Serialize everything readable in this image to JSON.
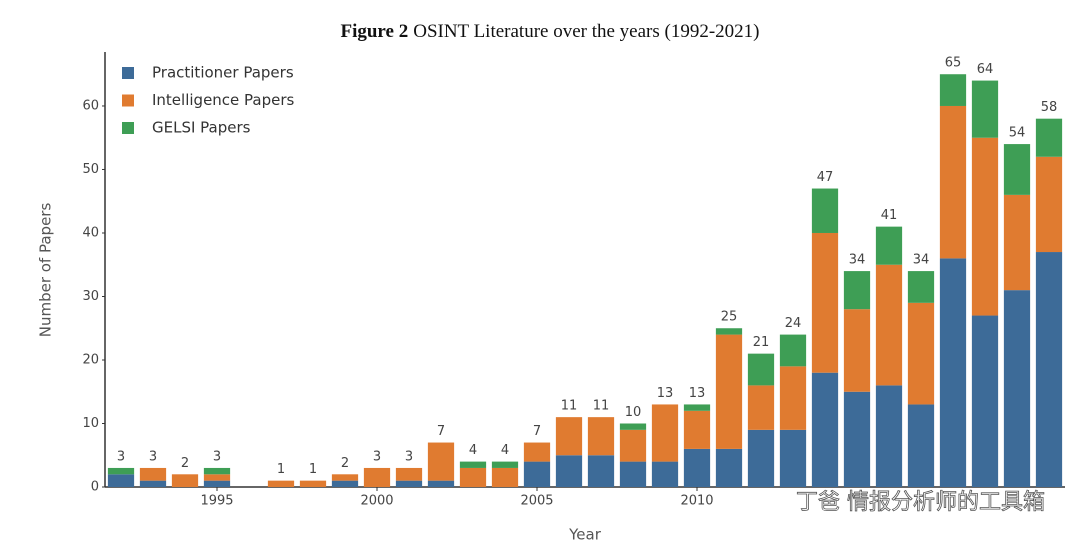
{
  "chart_data": {
    "type": "stacked_bar",
    "figure_label": "Figure 2",
    "title": "OSINT Literature over the years (1992-2021)",
    "x_label": "Year",
    "y_label": "Number of Papers",
    "x": [
      1992,
      1993,
      1994,
      1995,
      1996,
      1997,
      1998,
      1999,
      2000,
      2001,
      2002,
      2003,
      2004,
      2005,
      2006,
      2007,
      2008,
      2009,
      2010,
      2011,
      2012,
      2013,
      2014,
      2015,
      2016,
      2017,
      2018,
      2019,
      2020,
      2021
    ],
    "series": [
      {
        "name": "Practitioner Papers",
        "color": "#3d6b98",
        "values": [
          2,
          1,
          0,
          1,
          0,
          0,
          0,
          1,
          0,
          1,
          1,
          0,
          0,
          4,
          5,
          5,
          4,
          4,
          6,
          6,
          9,
          9,
          18,
          15,
          16,
          13,
          36,
          27,
          31,
          37
        ]
      },
      {
        "name": "Intelligence Papers",
        "color": "#e07b30",
        "values": [
          0,
          2,
          2,
          1,
          0,
          1,
          1,
          1,
          3,
          2,
          6,
          3,
          3,
          3,
          6,
          6,
          5,
          9,
          6,
          18,
          7,
          10,
          22,
          13,
          19,
          16,
          24,
          28,
          15,
          15
        ]
      },
      {
        "name": "GELSI Papers",
        "color": "#3e9e55",
        "values": [
          1,
          0,
          0,
          1,
          0,
          0,
          0,
          0,
          0,
          0,
          0,
          1,
          1,
          0,
          0,
          0,
          1,
          0,
          1,
          1,
          5,
          5,
          7,
          6,
          6,
          5,
          5,
          9,
          8,
          6
        ]
      }
    ],
    "totals": [
      3,
      3,
      2,
      3,
      null,
      1,
      1,
      2,
      3,
      3,
      7,
      4,
      4,
      7,
      11,
      11,
      10,
      13,
      13,
      25,
      21,
      24,
      47,
      34,
      41,
      34,
      65,
      64,
      54,
      58
    ],
    "xlim": [
      1991.5,
      2021.5
    ],
    "xticks": [
      1995,
      2000,
      2005,
      2010
    ],
    "ylim": [
      0,
      68.5
    ],
    "yticks": [
      0,
      10,
      20,
      30,
      40,
      50,
      60
    ],
    "grid": false,
    "legend": "top-left",
    "watermark": "丁爸 情报分析师的工具箱"
  }
}
